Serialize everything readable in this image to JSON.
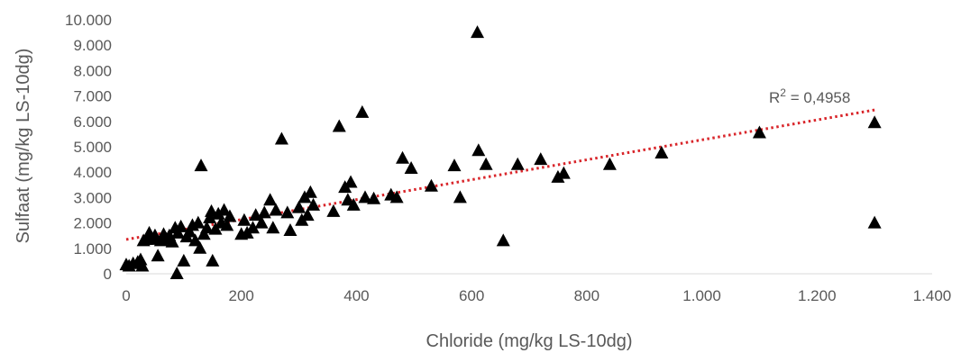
{
  "chart_data": {
    "type": "scatter",
    "title": "",
    "xlabel": "Chloride (mg/kg LS-10dg)",
    "ylabel": "Sulfaat (mg/kg LS-10dg)",
    "xlim": [
      0,
      1400
    ],
    "ylim": [
      0,
      10000
    ],
    "x_ticks": [
      0,
      200,
      400,
      600,
      800,
      1000,
      1200,
      1400
    ],
    "x_tick_labels": [
      "0",
      "200",
      "400",
      "600",
      "800",
      "1.000",
      "1.200",
      "1.400"
    ],
    "y_ticks": [
      0,
      1000,
      2000,
      3000,
      4000,
      5000,
      6000,
      7000,
      8000,
      9000,
      10000
    ],
    "y_tick_labels": [
      "0",
      "1.000",
      "2.000",
      "3.000",
      "4.000",
      "5.000",
      "6.000",
      "7.000",
      "8.000",
      "9.000",
      "10.000"
    ],
    "grid": false,
    "marker": "triangle",
    "marker_color": "#000000",
    "trendline": {
      "type": "linear",
      "style": "dotted",
      "color": "#d9262b",
      "x": [
        0,
        1300
      ],
      "y": [
        1350,
        6450
      ],
      "label_prefix": "R",
      "label_sup": "2",
      "label_value": " = 0,4958"
    },
    "points": [
      [
        0,
        350
      ],
      [
        5,
        300
      ],
      [
        12,
        400
      ],
      [
        20,
        450
      ],
      [
        25,
        550
      ],
      [
        28,
        300
      ],
      [
        30,
        1300
      ],
      [
        35,
        1350
      ],
      [
        40,
        1600
      ],
      [
        45,
        1350
      ],
      [
        50,
        1500
      ],
      [
        55,
        700
      ],
      [
        60,
        1300
      ],
      [
        65,
        1550
      ],
      [
        70,
        1350
      ],
      [
        75,
        1500
      ],
      [
        80,
        1250
      ],
      [
        85,
        1800
      ],
      [
        88,
        0
      ],
      [
        90,
        1600
      ],
      [
        95,
        1850
      ],
      [
        100,
        500
      ],
      [
        105,
        1450
      ],
      [
        110,
        1650
      ],
      [
        115,
        1900
      ],
      [
        120,
        1300
      ],
      [
        125,
        2000
      ],
      [
        128,
        1000
      ],
      [
        130,
        4250
      ],
      [
        135,
        1550
      ],
      [
        140,
        1800
      ],
      [
        145,
        2200
      ],
      [
        148,
        2450
      ],
      [
        150,
        500
      ],
      [
        155,
        1750
      ],
      [
        160,
        2350
      ],
      [
        165,
        2000
      ],
      [
        170,
        2500
      ],
      [
        175,
        1900
      ],
      [
        180,
        2250
      ],
      [
        200,
        1550
      ],
      [
        205,
        2100
      ],
      [
        210,
        1600
      ],
      [
        220,
        1800
      ],
      [
        225,
        2300
      ],
      [
        235,
        2000
      ],
      [
        240,
        2400
      ],
      [
        250,
        2900
      ],
      [
        255,
        1800
      ],
      [
        260,
        2500
      ],
      [
        270,
        5300
      ],
      [
        280,
        2400
      ],
      [
        285,
        1700
      ],
      [
        300,
        2600
      ],
      [
        305,
        2100
      ],
      [
        310,
        3000
      ],
      [
        315,
        2300
      ],
      [
        320,
        3200
      ],
      [
        325,
        2700
      ],
      [
        360,
        2450
      ],
      [
        370,
        5800
      ],
      [
        380,
        3400
      ],
      [
        385,
        2900
      ],
      [
        390,
        3600
      ],
      [
        395,
        2700
      ],
      [
        410,
        6350
      ],
      [
        415,
        3000
      ],
      [
        430,
        2950
      ],
      [
        460,
        3100
      ],
      [
        470,
        3000
      ],
      [
        480,
        4550
      ],
      [
        495,
        4150
      ],
      [
        530,
        3450
      ],
      [
        570,
        4250
      ],
      [
        580,
        3000
      ],
      [
        610,
        9500
      ],
      [
        612,
        4850
      ],
      [
        625,
        4300
      ],
      [
        655,
        1300
      ],
      [
        680,
        4300
      ],
      [
        720,
        4500
      ],
      [
        750,
        3800
      ],
      [
        760,
        3950
      ],
      [
        840,
        4300
      ],
      [
        930,
        4750
      ],
      [
        1100,
        5550
      ],
      [
        1300,
        5950
      ],
      [
        1300,
        2000
      ]
    ]
  }
}
